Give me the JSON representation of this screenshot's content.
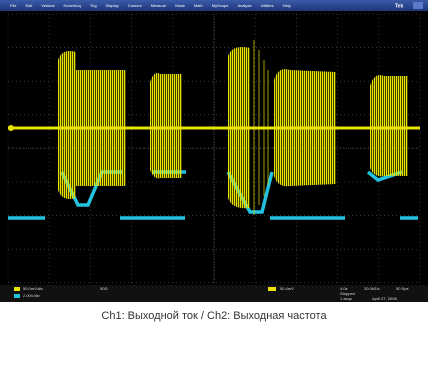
{
  "menu": {
    "items": [
      "File",
      "Edit",
      "Vertical",
      "Horiz/Acq",
      "Trig",
      "Display",
      "Cursors",
      "Measure",
      "Mask",
      "Math",
      "MyScope",
      "Analyze",
      "Utilities",
      "Help"
    ],
    "brand": "Tek"
  },
  "status": {
    "ch1": "50.0mV/div",
    "ch2": "2.00V/div",
    "coupling": "50Ω",
    "trigger": "50.4mV",
    "timebase": "4.0s",
    "rate": "20.0kS/s",
    "acq": "50 Sps",
    "state": "Stopped",
    "count": "1 acqs",
    "date": "April 27, 2008"
  },
  "caption": "Ch1: Выходной ток / Ch2: Выходная частота"
}
